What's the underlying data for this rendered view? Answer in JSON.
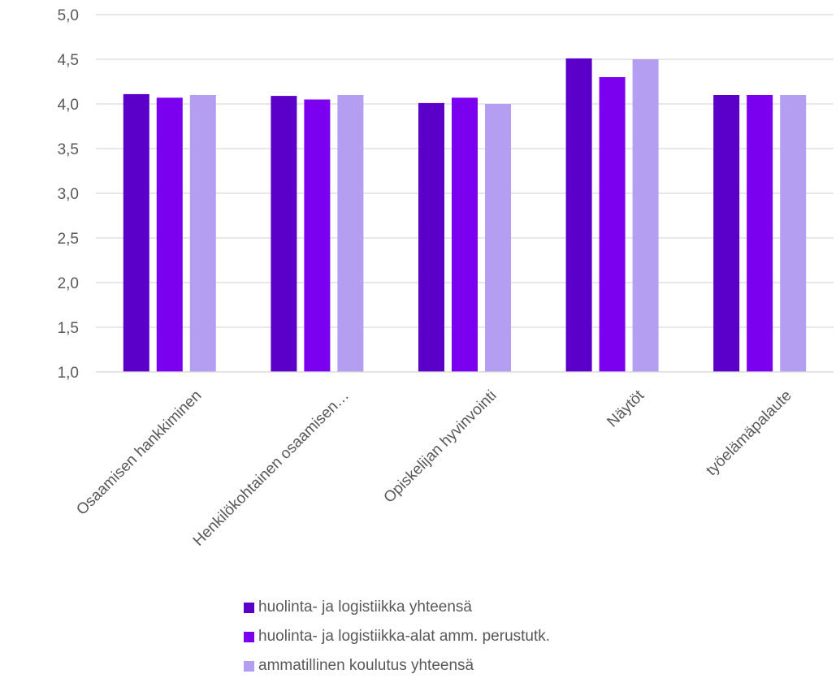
{
  "chart_data": {
    "type": "bar",
    "categories": [
      "Osaamisen hankkiminen",
      "Henkilökohtainen osaamisen…",
      "Opiskelijan hyvinvointi",
      "Näytöt",
      "työelämäpalaute"
    ],
    "series": [
      {
        "name": "huolinta- ja logistiikka yhteensä",
        "color": "#5b00c8",
        "values": [
          4.11,
          4.09,
          4.01,
          4.51,
          4.1
        ]
      },
      {
        "name": "huolinta- ja logistiikka-alat amm. perustutk.",
        "color": "#7b00f0",
        "values": [
          4.07,
          4.05,
          4.07,
          4.3,
          4.1
        ]
      },
      {
        "name": "ammatillinen koulutus yhteensä",
        "color": "#b39ef2",
        "values": [
          4.1,
          4.1,
          4.0,
          4.5,
          4.1
        ]
      }
    ],
    "ylim": [
      1.0,
      5.0
    ],
    "yticks": [
      "1,0",
      "1,5",
      "2,0",
      "2,5",
      "3,0",
      "3,5",
      "4,0",
      "4,5",
      "5,0"
    ],
    "ytick_values": [
      1.0,
      1.5,
      2.0,
      2.5,
      3.0,
      3.5,
      4.0,
      4.5,
      5.0
    ],
    "grid": true,
    "legend_position": "bottom"
  }
}
